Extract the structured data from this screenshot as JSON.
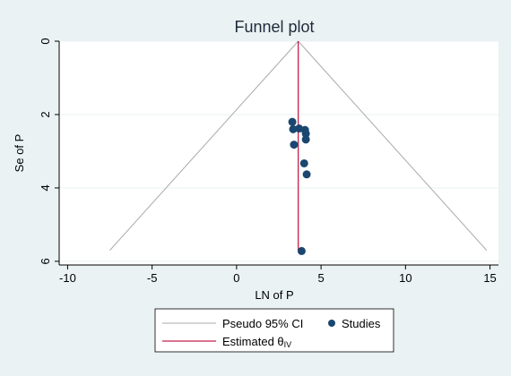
{
  "chart_data": {
    "type": "scatter",
    "title": "Funnel plot",
    "xlabel": "LN of P",
    "ylabel": "Se of P",
    "xlim": [
      -10.5,
      15.5
    ],
    "ylim": [
      0,
      6.1
    ],
    "y_reversed": true,
    "x_ticks": [
      -10,
      -5,
      0,
      5,
      10,
      15
    ],
    "x_tick_labels": [
      "-10",
      "-5",
      "0",
      "5",
      "10",
      "15"
    ],
    "y_ticks": [
      0,
      2,
      4,
      6
    ],
    "y_tick_labels": [
      "0",
      "2",
      "4",
      "6"
    ],
    "grid": true,
    "legend_position": "bottom",
    "colors": {
      "background": "#EAF2F3",
      "plot_area": "#FFFFFF",
      "grid": "#EAF2F3",
      "pseudo_ci": "#AAAAAA",
      "estimate": "#C4224C",
      "studies": "#1A476F"
    },
    "estimate_x": 3.65,
    "pseudo_ci": {
      "apex": [
        3.65,
        0
      ],
      "left_end": [
        -7.5,
        5.7
      ],
      "right_end": [
        14.8,
        5.7
      ]
    },
    "studies": [
      {
        "x": 3.3,
        "y": 2.2
      },
      {
        "x": 3.35,
        "y": 2.4
      },
      {
        "x": 3.7,
        "y": 2.38
      },
      {
        "x": 4.05,
        "y": 2.42
      },
      {
        "x": 4.1,
        "y": 2.52
      },
      {
        "x": 4.1,
        "y": 2.68
      },
      {
        "x": 3.4,
        "y": 2.82
      },
      {
        "x": 4.0,
        "y": 3.33
      },
      {
        "x": 4.15,
        "y": 3.63
      },
      {
        "x": 3.85,
        "y": 5.72
      }
    ],
    "legend": [
      {
        "label": "Pseudo 95% CI",
        "symbol": "line",
        "color": "#AAAAAA"
      },
      {
        "label": "Studies",
        "symbol": "dot",
        "color": "#1A476F"
      },
      {
        "label": "Estimated θ",
        "subscript": "IV",
        "symbol": "line",
        "color": "#C4224C"
      }
    ]
  }
}
